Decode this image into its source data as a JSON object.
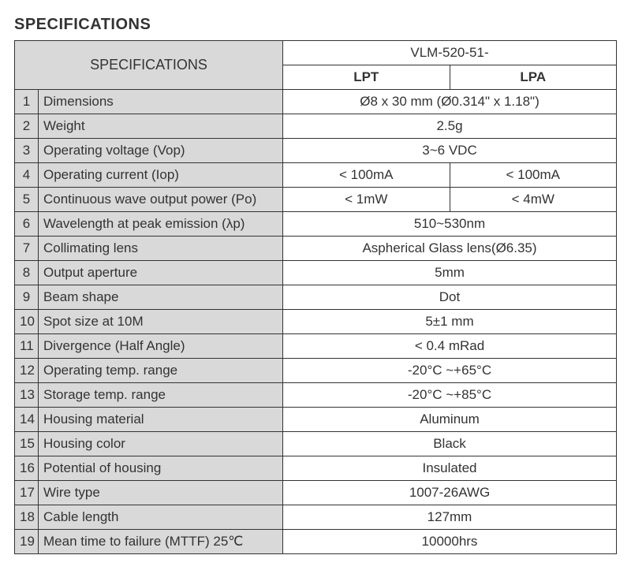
{
  "title": "SPECIFICATIONS",
  "header": {
    "specs_label": "SPECIFICATIONS",
    "model_prefix": "VLM-520-51-",
    "col_a": "LPT",
    "col_b": "LPA"
  },
  "rows": [
    {
      "n": "1",
      "label": "Dimensions",
      "merged": true,
      "val": "Ø8 x 30 mm (Ø0.314\" x 1.18\")"
    },
    {
      "n": "2",
      "label": "Weight",
      "merged": true,
      "val": "2.5g"
    },
    {
      "n": "3",
      "label": "Operating voltage (Vop)",
      "merged": true,
      "val": "3~6 VDC"
    },
    {
      "n": "4",
      "label": "Operating current (Iop)",
      "merged": false,
      "a": "< 100mA",
      "b": "< 100mA"
    },
    {
      "n": "5",
      "label": "Continuous wave output power (Po)",
      "merged": false,
      "a": "< 1mW",
      "b": "< 4mW"
    },
    {
      "n": "6",
      "label": "Wavelength at peak emission (λp)",
      "merged": true,
      "val": "510~530nm"
    },
    {
      "n": "7",
      "label": "Collimating lens",
      "merged": true,
      "val": "Aspherical Glass lens(Ø6.35)"
    },
    {
      "n": "8",
      "label": "Output aperture",
      "merged": true,
      "val": "5mm"
    },
    {
      "n": "9",
      "label": "Beam shape",
      "merged": true,
      "val": "Dot"
    },
    {
      "n": "10",
      "label": "Spot size at 10M",
      "merged": true,
      "val": "5±1 mm"
    },
    {
      "n": "11",
      "label": "Divergence (Half Angle)",
      "merged": true,
      "val": "< 0.4 mRad"
    },
    {
      "n": "12",
      "label": "Operating temp. range",
      "merged": true,
      "val": "-20°C ~+65°C"
    },
    {
      "n": "13",
      "label": "Storage temp. range",
      "merged": true,
      "val": "-20°C ~+85°C"
    },
    {
      "n": "14",
      "label": "Housing material",
      "merged": true,
      "val": "Aluminum"
    },
    {
      "n": "15",
      "label": "Housing color",
      "merged": true,
      "val": "Black"
    },
    {
      "n": "16",
      "label": "Potential of housing",
      "merged": true,
      "val": "Insulated"
    },
    {
      "n": "17",
      "label": "Wire type",
      "merged": true,
      "val": "1007-26AWG"
    },
    {
      "n": "18",
      "label": "Cable length",
      "merged": true,
      "val": "127mm"
    },
    {
      "n": "19",
      "label": "Mean time to failure (MTTF) 25℃",
      "merged": true,
      "val": "10000hrs"
    }
  ],
  "style": {
    "header_bg": "#d9d9d9",
    "border_color": "#333333",
    "text_color": "#333333",
    "row_label_bg": "#d9d9d9",
    "value_bg": "#ffffff",
    "title_fontsize": 20,
    "cell_fontsize": 17
  }
}
